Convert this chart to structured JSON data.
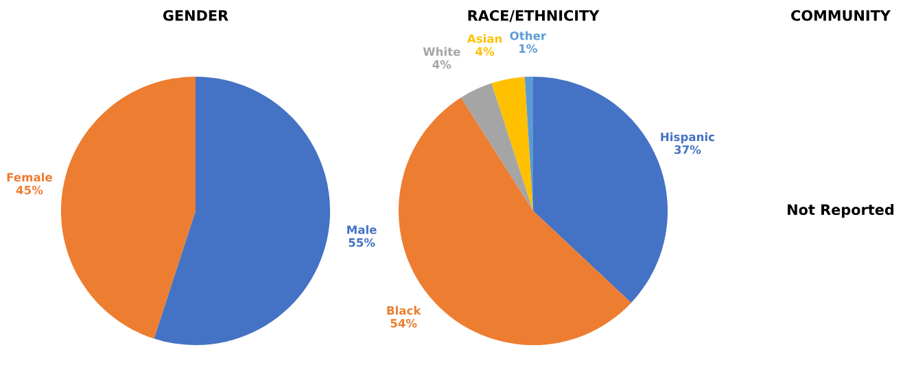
{
  "chart_data": [
    {
      "type": "pie",
      "title": "GENDER",
      "categories": [
        "Male",
        "Female"
      ],
      "values": [
        55,
        45
      ],
      "value_labels": [
        "55%",
        "45%"
      ],
      "colors": [
        "#4472c4",
        "#ed7d31"
      ]
    },
    {
      "type": "pie",
      "title": "RACE/ETHNICITY",
      "categories": [
        "Hispanic",
        "Black",
        "White",
        "Asian",
        "Other"
      ],
      "values": [
        37,
        54,
        4,
        4,
        1
      ],
      "value_labels": [
        "37%",
        "54%",
        "4%",
        "4%",
        "1%"
      ],
      "colors": [
        "#4472c4",
        "#ed7d31",
        "#a5a5a5",
        "#ffc000",
        "#5b9bd5"
      ]
    },
    {
      "type": "other",
      "title": "COMMUNITY",
      "annotations": [
        "Not Reported"
      ]
    }
  ]
}
